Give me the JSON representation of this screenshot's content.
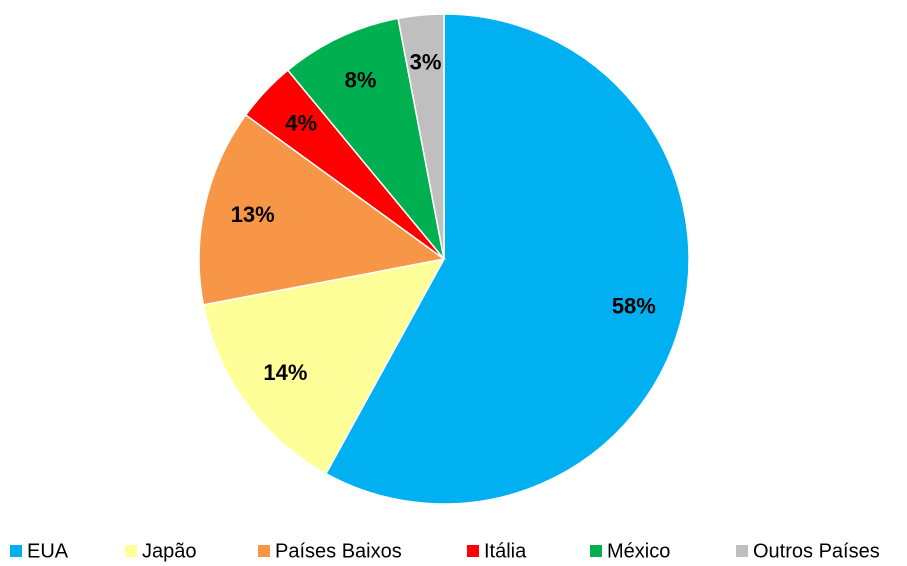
{
  "chart_data": {
    "type": "pie",
    "categories": [
      "EUA",
      "Japão",
      "Países Baixos",
      "Itália",
      "México",
      "Outros Países"
    ],
    "values": [
      58,
      14,
      13,
      4,
      8,
      3
    ],
    "value_labels": [
      "58%",
      "14%",
      "13%",
      "4%",
      "8%",
      "3%"
    ],
    "colors": [
      "#00b0f0",
      "#ffff99",
      "#f79646",
      "#ff0000",
      "#00b050",
      "#bfbfbf"
    ],
    "legend": "bottom"
  }
}
